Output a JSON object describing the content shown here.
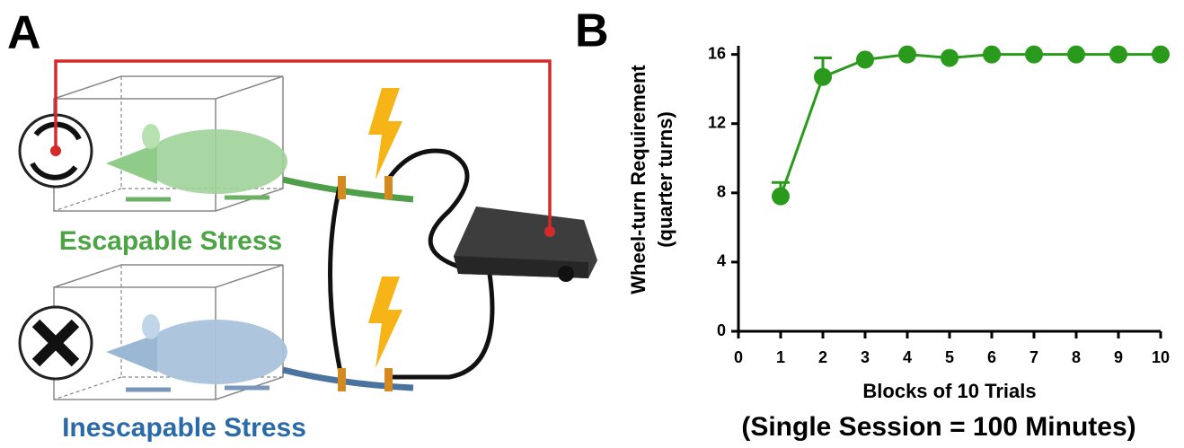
{
  "panel_a": {
    "label": "A",
    "escapable": "Escapable Stress",
    "inescapable": "Inescapable Stress"
  },
  "chart_data": {
    "type": "line",
    "panel_label": "B",
    "xlabel": "Blocks of 10 Trials",
    "ylabel": [
      "Wheel-turn Requirement",
      "(quarter turns)"
    ],
    "subtitle": "(Single Session = 100 Minutes)",
    "x": [
      1,
      2,
      3,
      4,
      5,
      6,
      7,
      8,
      9,
      10
    ],
    "values": [
      7.8,
      14.7,
      15.7,
      16,
      15.8,
      16,
      16,
      16,
      16,
      16
    ],
    "errors": [
      0.8,
      1.1,
      0,
      0,
      0,
      0,
      0,
      0,
      0,
      0
    ],
    "color": "#2a9a1c",
    "xlim": [
      0,
      10
    ],
    "xticks": [
      0,
      1,
      2,
      3,
      4,
      5,
      6,
      7,
      8,
      9,
      10
    ],
    "ylim": [
      0,
      16.5
    ],
    "yticks": [
      0,
      4,
      8,
      12,
      16
    ]
  }
}
